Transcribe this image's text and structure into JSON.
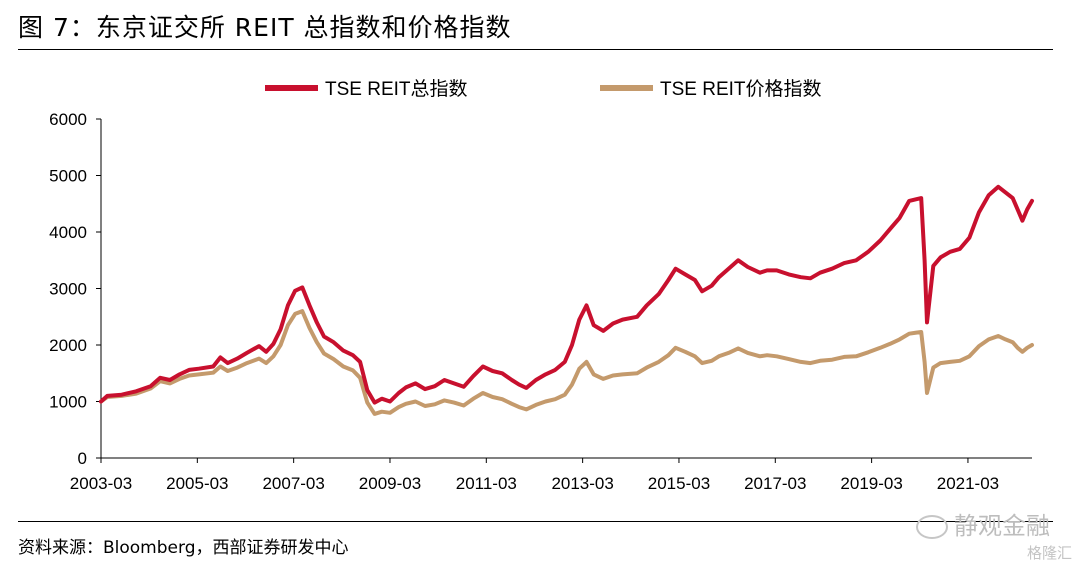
{
  "header": {
    "title": "图 7：东京证交所 REIT 总指数和价格指数"
  },
  "footer": {
    "source": "资料来源：Bloomberg，西部证券研发中心"
  },
  "watermark": {
    "primary": "静观金融",
    "secondary": "格隆汇"
  },
  "colors": {
    "total": "#c8102e",
    "price": "#c49a6c"
  },
  "chart_data": {
    "type": "line",
    "title": "",
    "xlabel": "",
    "ylabel": "",
    "ylim": [
      0,
      6000
    ],
    "yticks": [
      0,
      1000,
      2000,
      3000,
      4000,
      5000,
      6000
    ],
    "xlim": [
      2003.17,
      2022.5
    ],
    "xticks": [
      {
        "label": "2003-03",
        "value": 2003.17
      },
      {
        "label": "2005-03",
        "value": 2005.17
      },
      {
        "label": "2007-03",
        "value": 2007.17
      },
      {
        "label": "2009-03",
        "value": 2009.17
      },
      {
        "label": "2011-03",
        "value": 2011.17
      },
      {
        "label": "2013-03",
        "value": 2013.17
      },
      {
        "label": "2015-03",
        "value": 2015.17
      },
      {
        "label": "2017-03",
        "value": 2017.17
      },
      {
        "label": "2019-03",
        "value": 2019.17
      },
      {
        "label": "2021-03",
        "value": 2021.17
      }
    ],
    "legend_position": "top-center",
    "grid": false,
    "series": [
      {
        "name": "TSE REIT总指数",
        "color": "#c8102e",
        "points": [
          [
            2003.17,
            1000
          ],
          [
            2003.3,
            1100
          ],
          [
            2003.6,
            1120
          ],
          [
            2003.9,
            1180
          ],
          [
            2004.2,
            1270
          ],
          [
            2004.4,
            1420
          ],
          [
            2004.6,
            1380
          ],
          [
            2004.8,
            1480
          ],
          [
            2005.0,
            1560
          ],
          [
            2005.2,
            1580
          ],
          [
            2005.5,
            1620
          ],
          [
            2005.65,
            1780
          ],
          [
            2005.8,
            1680
          ],
          [
            2006.0,
            1760
          ],
          [
            2006.2,
            1860
          ],
          [
            2006.45,
            1980
          ],
          [
            2006.6,
            1880
          ],
          [
            2006.75,
            2020
          ],
          [
            2006.9,
            2280
          ],
          [
            2007.05,
            2700
          ],
          [
            2007.2,
            2960
          ],
          [
            2007.35,
            3020
          ],
          [
            2007.5,
            2700
          ],
          [
            2007.65,
            2400
          ],
          [
            2007.8,
            2150
          ],
          [
            2008.0,
            2050
          ],
          [
            2008.2,
            1900
          ],
          [
            2008.4,
            1820
          ],
          [
            2008.55,
            1700
          ],
          [
            2008.7,
            1200
          ],
          [
            2008.85,
            980
          ],
          [
            2009.0,
            1050
          ],
          [
            2009.17,
            1000
          ],
          [
            2009.35,
            1150
          ],
          [
            2009.5,
            1250
          ],
          [
            2009.7,
            1320
          ],
          [
            2009.9,
            1220
          ],
          [
            2010.1,
            1270
          ],
          [
            2010.3,
            1380
          ],
          [
            2010.5,
            1320
          ],
          [
            2010.7,
            1260
          ],
          [
            2010.9,
            1450
          ],
          [
            2011.1,
            1620
          ],
          [
            2011.3,
            1540
          ],
          [
            2011.5,
            1500
          ],
          [
            2011.7,
            1380
          ],
          [
            2011.85,
            1300
          ],
          [
            2012.0,
            1240
          ],
          [
            2012.2,
            1380
          ],
          [
            2012.4,
            1480
          ],
          [
            2012.6,
            1560
          ],
          [
            2012.8,
            1700
          ],
          [
            2012.95,
            2000
          ],
          [
            2013.1,
            2450
          ],
          [
            2013.25,
            2700
          ],
          [
            2013.4,
            2350
          ],
          [
            2013.6,
            2250
          ],
          [
            2013.8,
            2380
          ],
          [
            2014.0,
            2450
          ],
          [
            2014.3,
            2500
          ],
          [
            2014.5,
            2700
          ],
          [
            2014.75,
            2900
          ],
          [
            2014.95,
            3150
          ],
          [
            2015.1,
            3350
          ],
          [
            2015.3,
            3250
          ],
          [
            2015.5,
            3150
          ],
          [
            2015.65,
            2950
          ],
          [
            2015.85,
            3050
          ],
          [
            2016.0,
            3200
          ],
          [
            2016.2,
            3350
          ],
          [
            2016.4,
            3500
          ],
          [
            2016.6,
            3380
          ],
          [
            2016.85,
            3280
          ],
          [
            2017.0,
            3320
          ],
          [
            2017.2,
            3320
          ],
          [
            2017.45,
            3250
          ],
          [
            2017.7,
            3200
          ],
          [
            2017.9,
            3180
          ],
          [
            2018.1,
            3280
          ],
          [
            2018.35,
            3350
          ],
          [
            2018.6,
            3450
          ],
          [
            2018.85,
            3500
          ],
          [
            2019.1,
            3650
          ],
          [
            2019.35,
            3850
          ],
          [
            2019.55,
            4050
          ],
          [
            2019.75,
            4250
          ],
          [
            2019.95,
            4550
          ],
          [
            2020.1,
            4580
          ],
          [
            2020.2,
            4600
          ],
          [
            2020.27,
            3500
          ],
          [
            2020.32,
            2400
          ],
          [
            2020.45,
            3400
          ],
          [
            2020.6,
            3550
          ],
          [
            2020.8,
            3650
          ],
          [
            2021.0,
            3700
          ],
          [
            2021.2,
            3900
          ],
          [
            2021.4,
            4350
          ],
          [
            2021.6,
            4650
          ],
          [
            2021.8,
            4800
          ],
          [
            2021.95,
            4700
          ],
          [
            2022.1,
            4600
          ],
          [
            2022.2,
            4400
          ],
          [
            2022.3,
            4200
          ],
          [
            2022.4,
            4400
          ],
          [
            2022.5,
            4550
          ]
        ]
      },
      {
        "name": "TSE REIT价格指数",
        "color": "#c49a6c",
        "points": [
          [
            2003.17,
            1000
          ],
          [
            2003.3,
            1080
          ],
          [
            2003.6,
            1100
          ],
          [
            2003.9,
            1140
          ],
          [
            2004.2,
            1230
          ],
          [
            2004.4,
            1360
          ],
          [
            2004.6,
            1320
          ],
          [
            2004.8,
            1400
          ],
          [
            2005.0,
            1460
          ],
          [
            2005.2,
            1480
          ],
          [
            2005.5,
            1510
          ],
          [
            2005.65,
            1620
          ],
          [
            2005.8,
            1540
          ],
          [
            2006.0,
            1600
          ],
          [
            2006.2,
            1680
          ],
          [
            2006.45,
            1760
          ],
          [
            2006.6,
            1680
          ],
          [
            2006.75,
            1800
          ],
          [
            2006.9,
            2000
          ],
          [
            2007.05,
            2350
          ],
          [
            2007.2,
            2550
          ],
          [
            2007.35,
            2600
          ],
          [
            2007.5,
            2300
          ],
          [
            2007.65,
            2050
          ],
          [
            2007.8,
            1850
          ],
          [
            2008.0,
            1750
          ],
          [
            2008.2,
            1620
          ],
          [
            2008.4,
            1550
          ],
          [
            2008.55,
            1420
          ],
          [
            2008.7,
            980
          ],
          [
            2008.85,
            780
          ],
          [
            2009.0,
            820
          ],
          [
            2009.17,
            800
          ],
          [
            2009.35,
            900
          ],
          [
            2009.5,
            960
          ],
          [
            2009.7,
            1000
          ],
          [
            2009.9,
            920
          ],
          [
            2010.1,
            950
          ],
          [
            2010.3,
            1020
          ],
          [
            2010.5,
            980
          ],
          [
            2010.7,
            930
          ],
          [
            2010.9,
            1050
          ],
          [
            2011.1,
            1150
          ],
          [
            2011.3,
            1080
          ],
          [
            2011.5,
            1040
          ],
          [
            2011.7,
            960
          ],
          [
            2011.85,
            900
          ],
          [
            2012.0,
            860
          ],
          [
            2012.2,
            940
          ],
          [
            2012.4,
            1000
          ],
          [
            2012.6,
            1040
          ],
          [
            2012.8,
            1120
          ],
          [
            2012.95,
            1300
          ],
          [
            2013.1,
            1580
          ],
          [
            2013.25,
            1700
          ],
          [
            2013.4,
            1480
          ],
          [
            2013.6,
            1400
          ],
          [
            2013.8,
            1460
          ],
          [
            2014.0,
            1480
          ],
          [
            2014.3,
            1500
          ],
          [
            2014.5,
            1600
          ],
          [
            2014.75,
            1700
          ],
          [
            2014.95,
            1820
          ],
          [
            2015.1,
            1950
          ],
          [
            2015.3,
            1880
          ],
          [
            2015.5,
            1800
          ],
          [
            2015.65,
            1680
          ],
          [
            2015.85,
            1720
          ],
          [
            2016.0,
            1800
          ],
          [
            2016.2,
            1860
          ],
          [
            2016.4,
            1940
          ],
          [
            2016.6,
            1860
          ],
          [
            2016.85,
            1800
          ],
          [
            2017.0,
            1820
          ],
          [
            2017.2,
            1800
          ],
          [
            2017.45,
            1750
          ],
          [
            2017.7,
            1700
          ],
          [
            2017.9,
            1680
          ],
          [
            2018.1,
            1720
          ],
          [
            2018.35,
            1740
          ],
          [
            2018.6,
            1790
          ],
          [
            2018.85,
            1800
          ],
          [
            2019.1,
            1870
          ],
          [
            2019.35,
            1950
          ],
          [
            2019.55,
            2020
          ],
          [
            2019.75,
            2100
          ],
          [
            2019.95,
            2200
          ],
          [
            2020.1,
            2220
          ],
          [
            2020.2,
            2230
          ],
          [
            2020.27,
            1700
          ],
          [
            2020.32,
            1150
          ],
          [
            2020.45,
            1600
          ],
          [
            2020.6,
            1680
          ],
          [
            2020.8,
            1700
          ],
          [
            2021.0,
            1720
          ],
          [
            2021.2,
            1800
          ],
          [
            2021.4,
            1980
          ],
          [
            2021.6,
            2100
          ],
          [
            2021.8,
            2160
          ],
          [
            2021.95,
            2100
          ],
          [
            2022.1,
            2050
          ],
          [
            2022.2,
            1950
          ],
          [
            2022.3,
            1880
          ],
          [
            2022.4,
            1950
          ],
          [
            2022.5,
            2000
          ]
        ]
      }
    ]
  }
}
